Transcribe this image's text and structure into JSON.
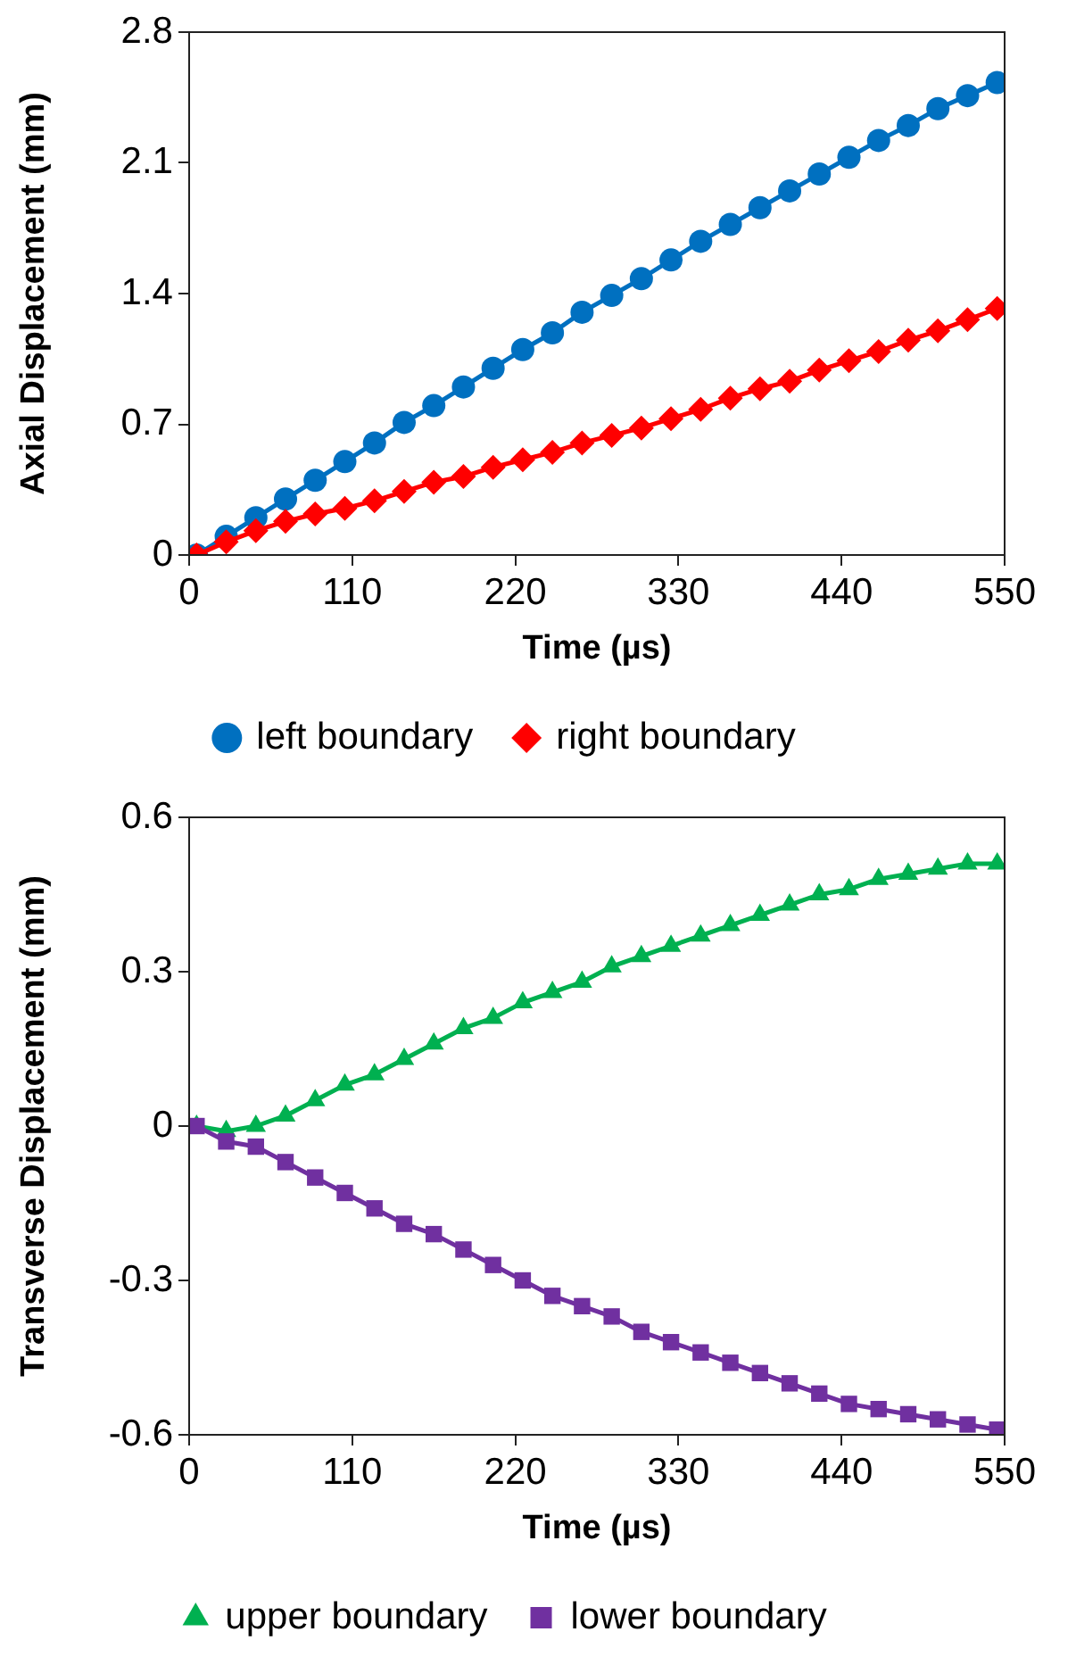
{
  "chart_data": [
    {
      "type": "line",
      "xlabel": "Time (µs)",
      "ylabel": "Axial Displacement (mm)",
      "x": [
        5,
        25,
        45,
        65,
        85,
        105,
        125,
        145,
        165,
        185,
        205,
        225,
        245,
        265,
        285,
        305,
        325,
        345,
        365,
        385,
        405,
        425,
        445,
        465,
        485,
        505,
        525,
        545
      ],
      "series": [
        {
          "name": "left boundary",
          "color": "#0070c0",
          "marker": "circle",
          "values": [
            0,
            0.1,
            0.2,
            0.3,
            0.4,
            0.5,
            0.6,
            0.71,
            0.8,
            0.9,
            1.0,
            1.1,
            1.19,
            1.3,
            1.39,
            1.48,
            1.58,
            1.68,
            1.77,
            1.86,
            1.95,
            2.04,
            2.13,
            2.22,
            2.3,
            2.39,
            2.46,
            2.53
          ]
        },
        {
          "name": "right boundary",
          "color": "#ff0000",
          "marker": "diamond",
          "values": [
            0,
            0.07,
            0.13,
            0.18,
            0.22,
            0.25,
            0.29,
            0.34,
            0.39,
            0.42,
            0.47,
            0.51,
            0.55,
            0.6,
            0.64,
            0.68,
            0.73,
            0.78,
            0.84,
            0.89,
            0.93,
            0.99,
            1.04,
            1.09,
            1.15,
            1.2,
            1.26,
            1.32
          ]
        }
      ],
      "xlim": [
        0,
        550
      ],
      "xticks": [
        0,
        110,
        220,
        330,
        440,
        550
      ],
      "ylim": [
        0,
        2.8
      ],
      "yticks": [
        0,
        0.7,
        1.4,
        2.1,
        2.8
      ],
      "grid": false,
      "legend": "bottom"
    },
    {
      "type": "line",
      "xlabel": "Time (µs)",
      "ylabel": "Transverse Displacement (mm)",
      "x": [
        5,
        25,
        45,
        65,
        85,
        105,
        125,
        145,
        165,
        185,
        205,
        225,
        245,
        265,
        285,
        305,
        325,
        345,
        365,
        385,
        405,
        425,
        445,
        465,
        485,
        505,
        525,
        545
      ],
      "series": [
        {
          "name": "upper boundary",
          "color": "#00b050",
          "marker": "triangle",
          "values": [
            0,
            -0.01,
            0,
            0.02,
            0.05,
            0.08,
            0.1,
            0.13,
            0.16,
            0.19,
            0.21,
            0.24,
            0.26,
            0.28,
            0.31,
            0.33,
            0.35,
            0.37,
            0.39,
            0.41,
            0.43,
            0.45,
            0.46,
            0.48,
            0.49,
            0.5,
            0.51,
            0.51
          ]
        },
        {
          "name": "lower boundary",
          "color": "#7030a0",
          "marker": "square",
          "values": [
            0,
            -0.03,
            -0.04,
            -0.07,
            -0.1,
            -0.13,
            -0.16,
            -0.19,
            -0.21,
            -0.24,
            -0.27,
            -0.3,
            -0.33,
            -0.35,
            -0.37,
            -0.4,
            -0.42,
            -0.44,
            -0.46,
            -0.48,
            -0.5,
            -0.52,
            -0.54,
            -0.55,
            -0.56,
            -0.57,
            -0.58,
            -0.59
          ]
        }
      ],
      "xlim": [
        0,
        550
      ],
      "xticks": [
        0,
        110,
        220,
        330,
        440,
        550
      ],
      "ylim": [
        -0.6,
        0.6
      ],
      "yticks": [
        {
          "value": -0.6,
          "label": "-0.6"
        },
        {
          "value": -0.3,
          "label": "-0.3"
        },
        0,
        0.3,
        0.6
      ],
      "grid": false,
      "legend": "bottom"
    }
  ]
}
